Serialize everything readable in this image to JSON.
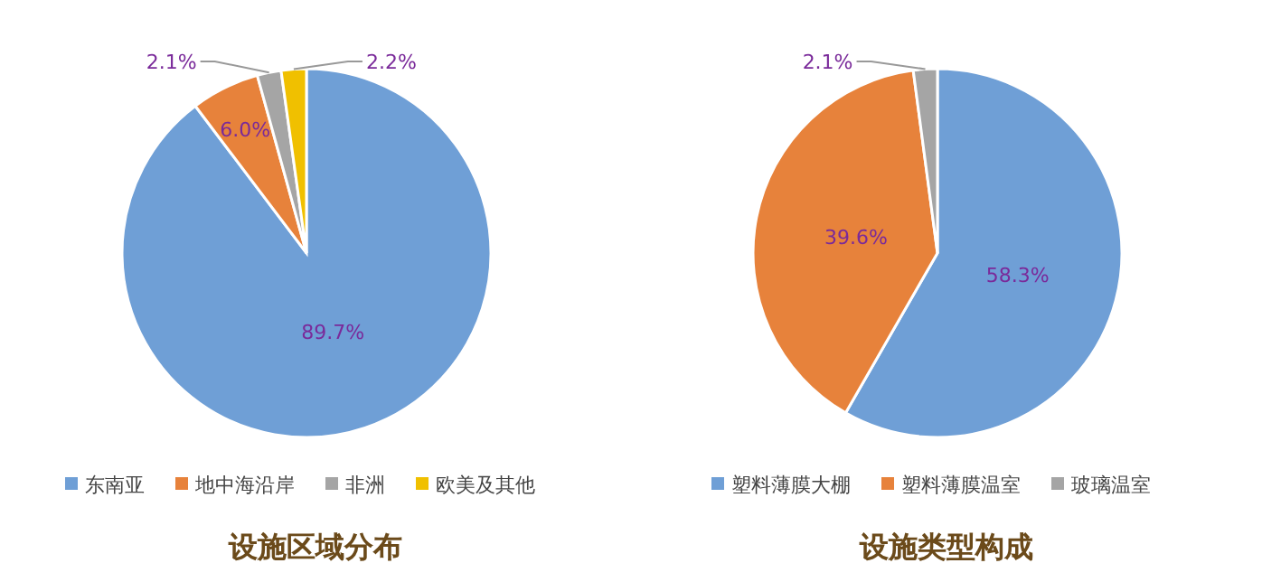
{
  "chart_data": [
    {
      "type": "pie",
      "title": "设施区域分布",
      "categories": [
        "东南亚",
        "地中海沿岸",
        "非洲",
        "欧美及其他"
      ],
      "values": [
        89.7,
        6.0,
        2.1,
        2.2
      ],
      "colors": [
        "#6f9fd6",
        "#e7823b",
        "#a5a5a5",
        "#f0c000"
      ],
      "value_labels": [
        "89.7%",
        "6.0%",
        "2.1%",
        "2.2%"
      ],
      "legend": "bottom"
    },
    {
      "type": "pie",
      "title": "设施类型构成",
      "categories": [
        "塑料薄膜大棚",
        "塑料薄膜温室",
        "玻璃温室"
      ],
      "values": [
        58.3,
        39.6,
        2.1
      ],
      "colors": [
        "#6f9fd6",
        "#e7823b",
        "#a5a5a5"
      ],
      "value_labels": [
        "58.3%",
        "39.6%",
        "2.1%"
      ],
      "legend": "bottom"
    }
  ]
}
